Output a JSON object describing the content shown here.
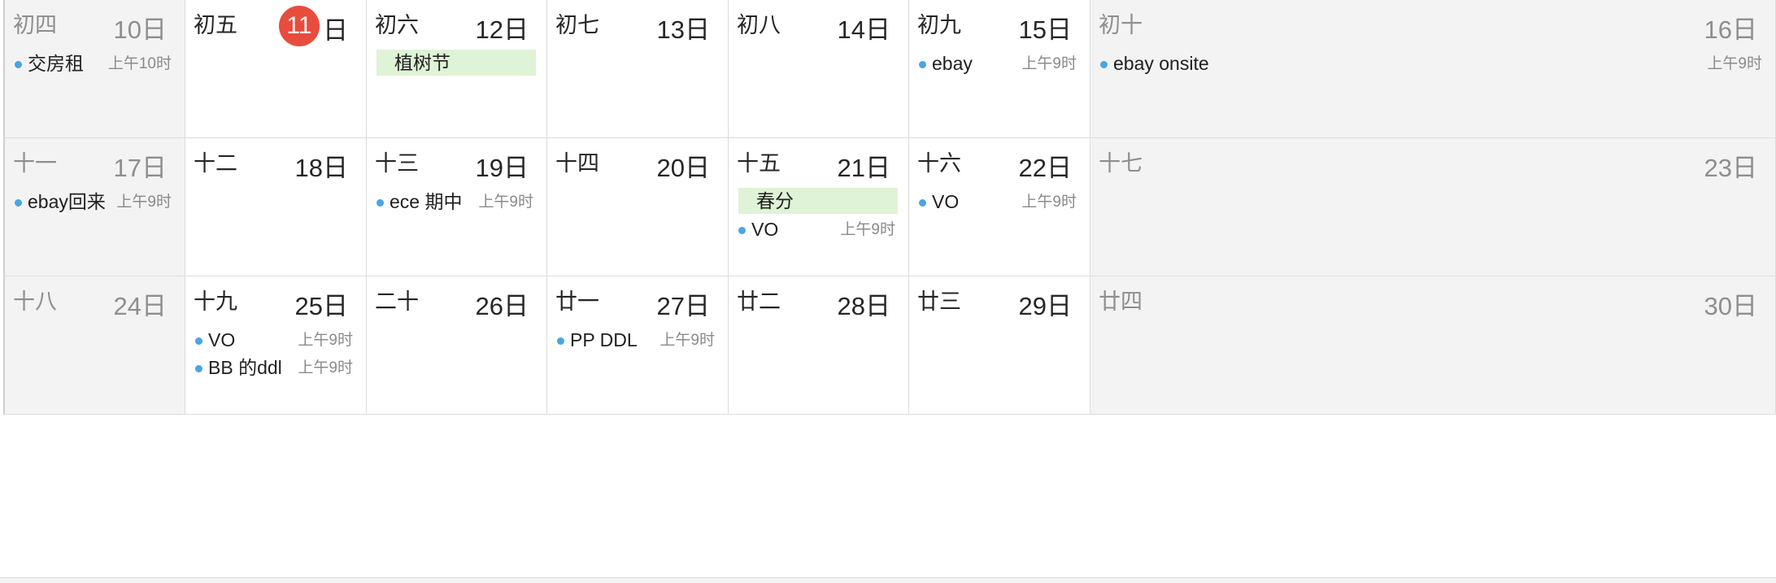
{
  "calendar": {
    "weeks": [
      {
        "days": [
          {
            "lunar": "初四",
            "date": "10日",
            "weekend": true,
            "events": [
              {
                "title": "交房租",
                "time": "上午10时"
              }
            ]
          },
          {
            "lunar": "初五",
            "date_num": "11",
            "date_suffix": "日",
            "today": true,
            "events": []
          },
          {
            "lunar": "初六",
            "date": "12日",
            "allday": "植树节",
            "events": []
          },
          {
            "lunar": "初七",
            "date": "13日",
            "events": []
          },
          {
            "lunar": "初八",
            "date": "14日",
            "events": []
          },
          {
            "lunar": "初九",
            "date": "15日",
            "events": [
              {
                "title": "ebay",
                "time": "上午9时"
              }
            ]
          },
          {
            "lunar": "初十",
            "date": "16日",
            "weekend": true,
            "events": [
              {
                "title": "ebay onsite",
                "time": "上午9时"
              }
            ]
          }
        ]
      },
      {
        "days": [
          {
            "lunar": "十一",
            "date": "17日",
            "weekend": true,
            "events": [
              {
                "title": "ebay回来",
                "time": "上午9时"
              }
            ]
          },
          {
            "lunar": "十二",
            "date": "18日",
            "events": []
          },
          {
            "lunar": "十三",
            "date": "19日",
            "events": [
              {
                "title": "ece 期中",
                "time": "上午9时"
              }
            ]
          },
          {
            "lunar": "十四",
            "date": "20日",
            "events": []
          },
          {
            "lunar": "十五",
            "date": "21日",
            "allday": "春分",
            "events": [
              {
                "title": "VO",
                "time": "上午9时"
              }
            ]
          },
          {
            "lunar": "十六",
            "date": "22日",
            "events": [
              {
                "title": "VO",
                "time": "上午9时"
              }
            ]
          },
          {
            "lunar": "十七",
            "date": "23日",
            "weekend": true,
            "events": []
          }
        ]
      },
      {
        "days": [
          {
            "lunar": "十八",
            "date": "24日",
            "weekend": true,
            "events": []
          },
          {
            "lunar": "十九",
            "date": "25日",
            "events": [
              {
                "title": "VO",
                "time": "上午9时"
              },
              {
                "title": "BB 的ddl",
                "time": "上午9时"
              }
            ]
          },
          {
            "lunar": "二十",
            "date": "26日",
            "events": []
          },
          {
            "lunar": "廿一",
            "date": "27日",
            "events": [
              {
                "title": "PP DDL",
                "time": "上午9时"
              }
            ]
          },
          {
            "lunar": "廿二",
            "date": "28日",
            "events": []
          },
          {
            "lunar": "廿三",
            "date": "29日",
            "events": []
          },
          {
            "lunar": "廿四",
            "date": "30日",
            "weekend": true,
            "events": []
          }
        ]
      }
    ],
    "colors": {
      "event_dot": "#48a5e6",
      "today_badge": "#e84c3d",
      "allday_bg": "#dff3d6",
      "weekend_bg": "#f3f3f3"
    }
  }
}
